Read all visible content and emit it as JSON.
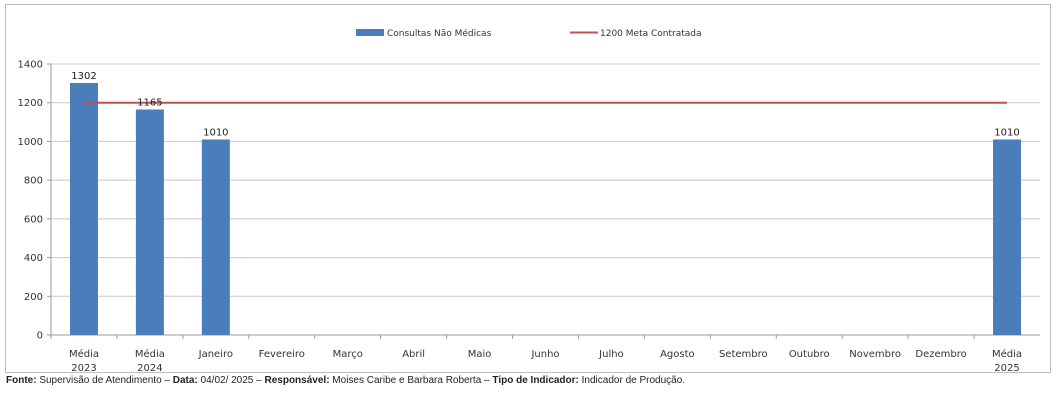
{
  "chart_data": {
    "type": "bar",
    "categories": [
      [
        "Média",
        "2023"
      ],
      [
        "Média",
        "2024"
      ],
      [
        "Janeiro"
      ],
      [
        "Fevereiro"
      ],
      [
        "Março"
      ],
      [
        "Abril"
      ],
      [
        "Maio"
      ],
      [
        "Junho"
      ],
      [
        "Julho"
      ],
      [
        "Agosto"
      ],
      [
        "Setembro"
      ],
      [
        "Outubro"
      ],
      [
        "Novembro"
      ],
      [
        "Dezembro"
      ],
      [
        "Média",
        "2025"
      ]
    ],
    "series": [
      {
        "name": "Consultas Não Médicas",
        "type": "bar",
        "color": "#4a7ebb",
        "values": [
          1302,
          1165,
          1010,
          null,
          null,
          null,
          null,
          null,
          null,
          null,
          null,
          null,
          null,
          null,
          1010
        ],
        "labels": [
          "1302",
          "1165",
          "1010",
          "",
          "",
          "",
          "",
          "",
          "",
          "",
          "",
          "",
          "",
          "",
          "1010"
        ]
      },
      {
        "name": "1200 Meta Contratada",
        "type": "line",
        "color": "#c0504d",
        "value": 1200
      }
    ],
    "ylim": [
      0,
      1400
    ],
    "yticks": [
      0,
      200,
      400,
      600,
      800,
      1000,
      1200,
      1400
    ],
    "grid": true,
    "legend_position": "top-center"
  },
  "footer": {
    "fonte_label": "Fonte:",
    "fonte_value": " Supervisão de Atendimento – ",
    "data_label": "Data:",
    "data_value": " 04/02/ 2025 – ",
    "responsavel_label": "Responsável:",
    "responsavel_value": " Moises Caribe e Barbara Roberta – ",
    "tipo_label": "Tipo de Indicador:",
    "tipo_value": " Indicador de Produção."
  }
}
